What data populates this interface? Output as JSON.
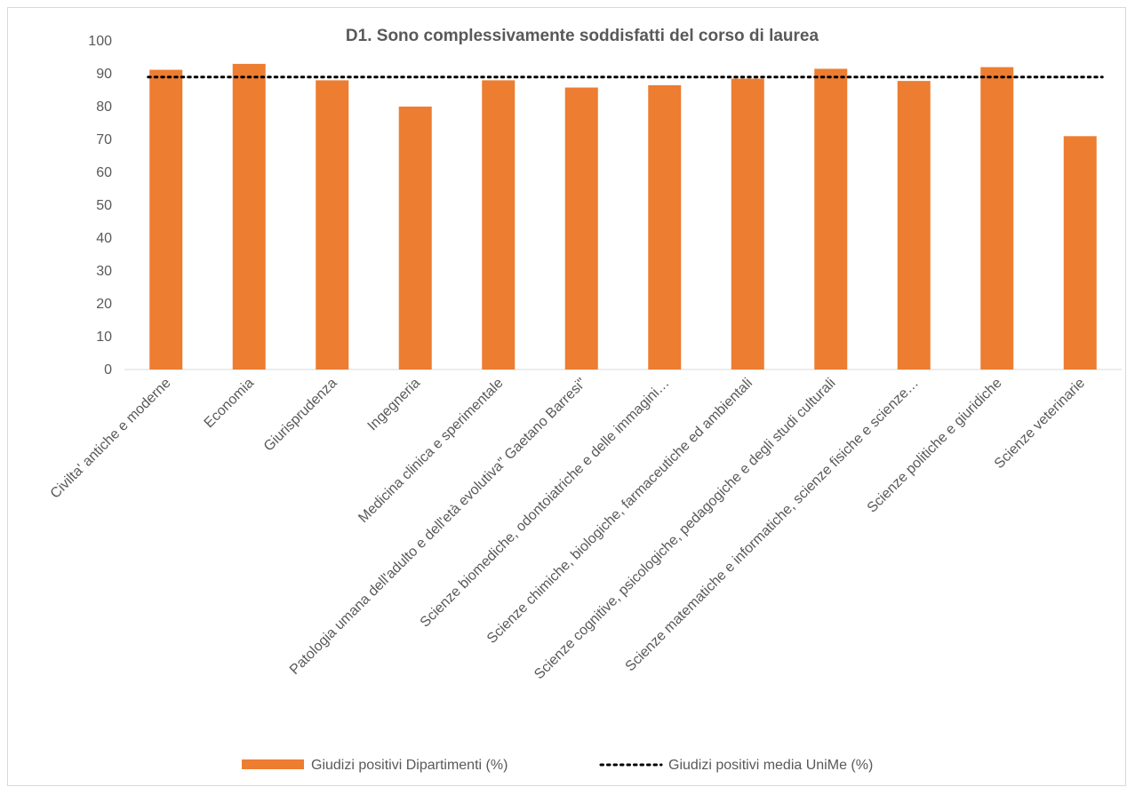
{
  "chart_data": {
    "type": "bar",
    "title": "D1. Sono complessivamente soddisfatti del corso di laurea",
    "xlabel": "",
    "ylabel": "",
    "ylim": [
      0,
      100
    ],
    "yticks": [
      0,
      10,
      20,
      30,
      40,
      50,
      60,
      70,
      80,
      90,
      100
    ],
    "grid": false,
    "legend_position": "bottom",
    "categories": [
      "Civilta' antiche e moderne",
      "Economia",
      "Giurisprudenza",
      "Ingegneria",
      "Medicina clinica e sperimentale",
      "Patologia umana dell'adulto e dell'età evolutiva\" Gaetano Barresi\"",
      "Scienze biomediche, odontoiatriche e delle immagini…",
      "Scienze chimiche, biologiche, farmaceutiche ed ambientali",
      "Scienze cognitive, psicologiche, pedagogiche e degli studi culturali",
      "Scienze matematiche e informatiche, scienze fisiche e scienze…",
      "Scienze politiche e giuridiche",
      "Scienze veterinarie"
    ],
    "series": [
      {
        "name": "Giudizi positivi Dipartimenti (%)",
        "kind": "bar",
        "color": "#ed7d31",
        "values": [
          91.2,
          93.0,
          88.0,
          80.0,
          88.0,
          85.8,
          86.5,
          88.5,
          91.5,
          87.8,
          92.0,
          71.0
        ]
      },
      {
        "name": "Giudizi positivi media UniMe (%)",
        "kind": "dotted-line",
        "color": "#000000",
        "value": 89.0
      }
    ]
  }
}
